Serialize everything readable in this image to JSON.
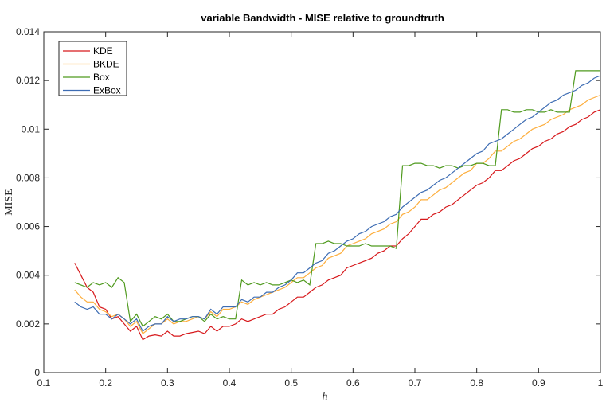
{
  "chart_data": {
    "type": "line",
    "title": "variable Bandwidth - MISE relative to groundtruth",
    "xlabel": "h",
    "ylabel": "MISE",
    "xlim": [
      0.1,
      1.0
    ],
    "ylim": [
      0,
      0.014
    ],
    "xticks": [
      "0.1",
      "0.2",
      "0.3",
      "0.4",
      "0.5",
      "0.6",
      "0.7",
      "0.8",
      "0.9",
      "1"
    ],
    "yticks": [
      "0",
      "0.002",
      "0.004",
      "0.006",
      "0.008",
      "0.01",
      "0.012",
      "0.014"
    ],
    "grid": false,
    "legend_placement": "top-left",
    "x_start": 0.15,
    "x_step": 0.01,
    "series": [
      {
        "name": "KDE",
        "color": "#d7191c",
        "values": [
          0.0045,
          0.004,
          0.0035,
          0.0033,
          0.0027,
          0.0026,
          0.0022,
          0.0023,
          0.002,
          0.0017,
          0.0019,
          0.00135,
          0.0015,
          0.00155,
          0.0015,
          0.0017,
          0.0015,
          0.0015,
          0.0016,
          0.00165,
          0.0017,
          0.0016,
          0.0019,
          0.0017,
          0.0019,
          0.0019,
          0.002,
          0.0022,
          0.0021,
          0.0022,
          0.0023,
          0.0024,
          0.0024,
          0.0026,
          0.0027,
          0.0029,
          0.0031,
          0.0031,
          0.0033,
          0.0035,
          0.0036,
          0.0038,
          0.0039,
          0.004,
          0.0043,
          0.0044,
          0.0045,
          0.0046,
          0.0047,
          0.0049,
          0.005,
          0.0052,
          0.0052,
          0.0055,
          0.0057,
          0.006,
          0.0063,
          0.0063,
          0.0065,
          0.0066,
          0.0068,
          0.0069,
          0.0071,
          0.0073,
          0.0075,
          0.0077,
          0.0078,
          0.008,
          0.0083,
          0.0083,
          0.0085,
          0.0087,
          0.0088,
          0.009,
          0.0092,
          0.0093,
          0.0095,
          0.0096,
          0.0098,
          0.0099,
          0.0101,
          0.0102,
          0.0104,
          0.0105,
          0.0107,
          0.0108
        ]
      },
      {
        "name": "BKDE",
        "color": "#fdae3d",
        "values": [
          0.0034,
          0.0031,
          0.0029,
          0.0029,
          0.0026,
          0.0025,
          0.0023,
          0.0024,
          0.0022,
          0.0019,
          0.0021,
          0.0016,
          0.0018,
          0.002,
          0.002,
          0.0022,
          0.002,
          0.0021,
          0.0021,
          0.0022,
          0.0023,
          0.0022,
          0.0025,
          0.0023,
          0.0026,
          0.0026,
          0.0027,
          0.0029,
          0.0028,
          0.003,
          0.0031,
          0.0032,
          0.0033,
          0.0034,
          0.0035,
          0.0037,
          0.0039,
          0.0039,
          0.0041,
          0.0043,
          0.0044,
          0.0047,
          0.0048,
          0.0049,
          0.0052,
          0.0053,
          0.0054,
          0.0055,
          0.0057,
          0.0058,
          0.0059,
          0.0061,
          0.0062,
          0.0065,
          0.0066,
          0.0068,
          0.0071,
          0.0071,
          0.0073,
          0.0075,
          0.0076,
          0.0078,
          0.008,
          0.0082,
          0.0083,
          0.0086,
          0.0086,
          0.0088,
          0.0091,
          0.0091,
          0.0093,
          0.0095,
          0.0096,
          0.0098,
          0.01,
          0.0101,
          0.0102,
          0.0104,
          0.0105,
          0.0106,
          0.0108,
          0.0109,
          0.011,
          0.0112,
          0.0113,
          0.0114
        ]
      },
      {
        "name": "Box",
        "color": "#4f9a1e",
        "values": [
          0.0037,
          0.0036,
          0.0035,
          0.0037,
          0.0036,
          0.0037,
          0.0035,
          0.0039,
          0.0037,
          0.0021,
          0.0024,
          0.0019,
          0.0021,
          0.0023,
          0.0022,
          0.0024,
          0.0021,
          0.0021,
          0.0022,
          0.0023,
          0.0023,
          0.0021,
          0.0024,
          0.0022,
          0.0023,
          0.0022,
          0.0022,
          0.0038,
          0.0036,
          0.0037,
          0.0036,
          0.0037,
          0.0036,
          0.0036,
          0.0037,
          0.0038,
          0.0037,
          0.0038,
          0.0036,
          0.0053,
          0.0053,
          0.0054,
          0.0053,
          0.0053,
          0.0052,
          0.0052,
          0.0052,
          0.0053,
          0.0052,
          0.0052,
          0.0052,
          0.0052,
          0.0051,
          0.0085,
          0.0085,
          0.0086,
          0.0086,
          0.0085,
          0.0085,
          0.0084,
          0.0085,
          0.0085,
          0.0084,
          0.0085,
          0.0085,
          0.0086,
          0.0086,
          0.0085,
          0.0085,
          0.0108,
          0.0108,
          0.0107,
          0.0107,
          0.0108,
          0.0108,
          0.0107,
          0.0107,
          0.0108,
          0.0107,
          0.0107,
          0.0107,
          0.0124,
          0.0124,
          0.0124,
          0.0124,
          0.0124
        ]
      },
      {
        "name": "ExBox",
        "color": "#3d6cb3",
        "values": [
          0.0029,
          0.0027,
          0.0026,
          0.0027,
          0.0024,
          0.0024,
          0.0022,
          0.0024,
          0.0022,
          0.002,
          0.0022,
          0.0017,
          0.0019,
          0.002,
          0.002,
          0.0023,
          0.0021,
          0.0022,
          0.0022,
          0.0023,
          0.0023,
          0.0022,
          0.0026,
          0.0024,
          0.0027,
          0.0027,
          0.0027,
          0.003,
          0.0029,
          0.0031,
          0.0031,
          0.0033,
          0.0033,
          0.0035,
          0.0036,
          0.0038,
          0.0041,
          0.0041,
          0.0043,
          0.0045,
          0.0046,
          0.0049,
          0.005,
          0.0052,
          0.0054,
          0.0055,
          0.0057,
          0.0058,
          0.006,
          0.0061,
          0.0062,
          0.0064,
          0.0065,
          0.0068,
          0.007,
          0.0072,
          0.0074,
          0.0075,
          0.0077,
          0.0079,
          0.008,
          0.0082,
          0.0084,
          0.0086,
          0.0088,
          0.009,
          0.0091,
          0.0094,
          0.0095,
          0.0096,
          0.0098,
          0.01,
          0.0102,
          0.0104,
          0.0105,
          0.0107,
          0.0109,
          0.0111,
          0.0112,
          0.0114,
          0.0115,
          0.0116,
          0.0118,
          0.0119,
          0.0121,
          0.0122
        ]
      }
    ]
  }
}
